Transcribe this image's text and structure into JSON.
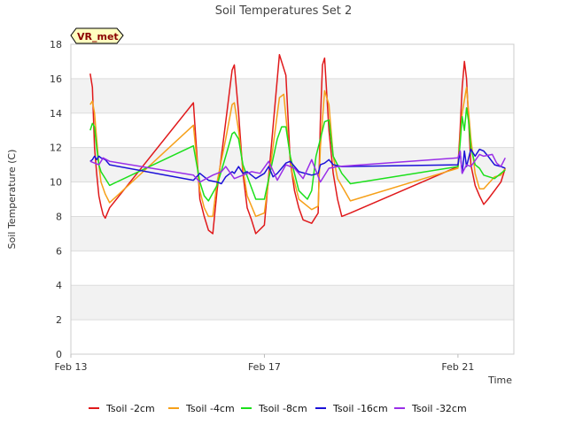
{
  "chart_data": {
    "type": "line",
    "title": "Soil Temperatures Set 2",
    "xlabel": "Time",
    "ylabel": "Soil Temperature (C)",
    "badge": "VR_met",
    "x_unit": "days since Feb 13",
    "xlim": [
      0,
      10.3
    ],
    "ylim": [
      0,
      18
    ],
    "y_ticks": [
      0,
      2,
      4,
      6,
      8,
      10,
      12,
      14,
      16,
      18
    ],
    "x_ticks": [
      {
        "value": 0,
        "label": "Feb 13"
      },
      {
        "value": 4.5,
        "label": "Feb 17"
      },
      {
        "value": 9.0,
        "label": "Feb 21"
      }
    ],
    "grid": true,
    "legend_position": "bottom",
    "series": [
      {
        "name": "Tsoil -2cm",
        "color": "#e0191b",
        "x": [
          0.45,
          0.5,
          0.55,
          0.6,
          0.65,
          0.7,
          0.75,
          0.8,
          0.9,
          2.85,
          3.0,
          3.1,
          3.2,
          3.3,
          3.4,
          3.6,
          3.75,
          3.8,
          3.9,
          4.0,
          4.1,
          4.2,
          4.3,
          4.5,
          4.85,
          5.0,
          5.1,
          5.2,
          5.3,
          5.4,
          5.6,
          5.75,
          5.8,
          5.85,
          5.9,
          6.0,
          6.1,
          6.2,
          6.3,
          6.5,
          9.0,
          9.05,
          9.1,
          9.15,
          9.2,
          9.25,
          9.3,
          9.4,
          9.5,
          9.6,
          9.7,
          9.85,
          10.0,
          10.1
        ],
        "values": [
          16.3,
          15.5,
          12.0,
          10.5,
          9.2,
          8.6,
          8.1,
          7.9,
          8.5,
          14.6,
          9.0,
          8.0,
          7.2,
          7.0,
          9.5,
          13.5,
          16.5,
          16.8,
          14.0,
          10.5,
          8.5,
          7.8,
          7.0,
          7.5,
          17.4,
          16.2,
          11.2,
          9.5,
          8.5,
          7.8,
          7.6,
          8.2,
          13.5,
          16.8,
          17.2,
          13.0,
          10.5,
          9.0,
          8.0,
          8.2,
          10.9,
          13.0,
          15.5,
          17.0,
          16.0,
          13.5,
          11.0,
          9.8,
          9.2,
          8.7,
          9.0,
          9.5,
          10.0,
          10.8
        ]
      },
      {
        "name": "Tsoil -4cm",
        "color": "#f6a019",
        "x": [
          0.45,
          0.5,
          0.55,
          0.6,
          0.65,
          0.7,
          0.8,
          0.9,
          2.85,
          3.0,
          3.1,
          3.2,
          3.3,
          3.4,
          3.6,
          3.75,
          3.8,
          3.9,
          4.0,
          4.1,
          4.3,
          4.5,
          4.85,
          4.95,
          5.05,
          5.15,
          5.3,
          5.6,
          5.75,
          5.8,
          5.9,
          6.0,
          6.1,
          6.2,
          6.5,
          9.0,
          9.05,
          9.1,
          9.2,
          9.3,
          9.4,
          9.5,
          9.6,
          9.85,
          10.0,
          10.1
        ],
        "values": [
          14.5,
          14.7,
          14.0,
          12.5,
          11.0,
          10.0,
          9.3,
          8.8,
          13.3,
          9.5,
          8.5,
          8.0,
          8.0,
          10.0,
          12.5,
          14.5,
          14.6,
          13.0,
          10.8,
          9.2,
          8.0,
          8.2,
          14.9,
          15.1,
          12.5,
          10.5,
          9.0,
          8.4,
          8.6,
          12.0,
          15.3,
          14.5,
          11.5,
          10.2,
          8.9,
          10.8,
          12.5,
          14.0,
          15.5,
          12.5,
          10.5,
          9.6,
          9.6,
          10.3,
          10.4,
          10.8
        ]
      },
      {
        "name": "Tsoil -8cm",
        "color": "#1be01b",
        "x": [
          0.45,
          0.5,
          0.55,
          0.6,
          0.65,
          0.7,
          0.9,
          2.85,
          3.0,
          3.1,
          3.2,
          3.4,
          3.6,
          3.75,
          3.8,
          3.9,
          4.0,
          4.3,
          4.5,
          4.8,
          4.9,
          5.0,
          5.1,
          5.2,
          5.3,
          5.5,
          5.6,
          5.7,
          5.8,
          5.9,
          6.0,
          6.1,
          6.3,
          6.5,
          9.0,
          9.05,
          9.1,
          9.15,
          9.2,
          9.25,
          9.3,
          9.4,
          9.5,
          9.6,
          9.85,
          10.0,
          10.1
        ],
        "values": [
          13.0,
          13.4,
          13.2,
          12.0,
          11.0,
          10.6,
          9.8,
          12.1,
          10.0,
          9.2,
          8.9,
          9.8,
          11.5,
          12.8,
          12.9,
          12.5,
          11.0,
          9.0,
          9.0,
          12.5,
          13.2,
          13.2,
          11.5,
          10.5,
          9.5,
          9.0,
          9.5,
          11.5,
          12.5,
          13.5,
          13.6,
          11.5,
          10.5,
          9.9,
          10.9,
          12.2,
          13.8,
          13.0,
          14.3,
          13.5,
          12.0,
          11.0,
          10.8,
          10.4,
          10.2,
          10.5,
          10.7
        ]
      },
      {
        "name": "Tsoil -16cm",
        "color": "#1b10d8",
        "x": [
          0.45,
          0.5,
          0.55,
          0.6,
          0.65,
          0.7,
          0.8,
          0.9,
          2.85,
          3.0,
          3.2,
          3.4,
          3.5,
          3.6,
          3.75,
          3.8,
          3.9,
          4.0,
          4.1,
          4.3,
          4.5,
          4.6,
          4.7,
          4.8,
          4.9,
          5.0,
          5.1,
          5.3,
          5.6,
          5.75,
          5.8,
          5.9,
          6.0,
          6.1,
          6.3,
          9.0,
          9.05,
          9.1,
          9.15,
          9.2,
          9.3,
          9.4,
          9.5,
          9.6,
          9.7,
          9.85,
          10.0,
          10.1
        ],
        "values": [
          11.2,
          11.3,
          11.5,
          11.3,
          11.5,
          11.4,
          11.3,
          11.0,
          10.1,
          10.5,
          10.1,
          10.0,
          9.9,
          10.3,
          10.6,
          10.5,
          10.9,
          10.5,
          10.6,
          10.2,
          10.5,
          10.9,
          10.3,
          10.5,
          10.8,
          11.1,
          11.2,
          10.6,
          10.4,
          10.5,
          11.0,
          11.1,
          11.3,
          11.0,
          10.9,
          11.0,
          11.8,
          10.5,
          11.8,
          10.9,
          11.9,
          11.5,
          11.9,
          11.8,
          11.5,
          11.0,
          10.9,
          10.8
        ]
      },
      {
        "name": "Tsoil -32cm",
        "color": "#9a2ee8",
        "x": [
          0.45,
          0.55,
          0.65,
          0.75,
          0.9,
          2.85,
          3.0,
          3.3,
          3.5,
          3.6,
          3.8,
          4.0,
          4.2,
          4.4,
          4.6,
          4.8,
          5.0,
          5.2,
          5.4,
          5.6,
          5.8,
          6.0,
          6.2,
          9.0,
          9.05,
          9.1,
          9.2,
          9.3,
          9.5,
          9.6,
          9.8,
          9.9,
          10.0,
          10.1
        ],
        "values": [
          11.2,
          11.1,
          11.0,
          11.4,
          11.2,
          10.4,
          10.0,
          10.4,
          10.6,
          10.9,
          10.2,
          10.4,
          10.6,
          10.5,
          11.2,
          10.1,
          11.0,
          10.8,
          10.2,
          11.3,
          10.0,
          10.8,
          10.9,
          11.4,
          11.8,
          10.5,
          11.0,
          10.9,
          11.6,
          11.5,
          11.6,
          11.1,
          10.9,
          11.4
        ]
      }
    ]
  }
}
